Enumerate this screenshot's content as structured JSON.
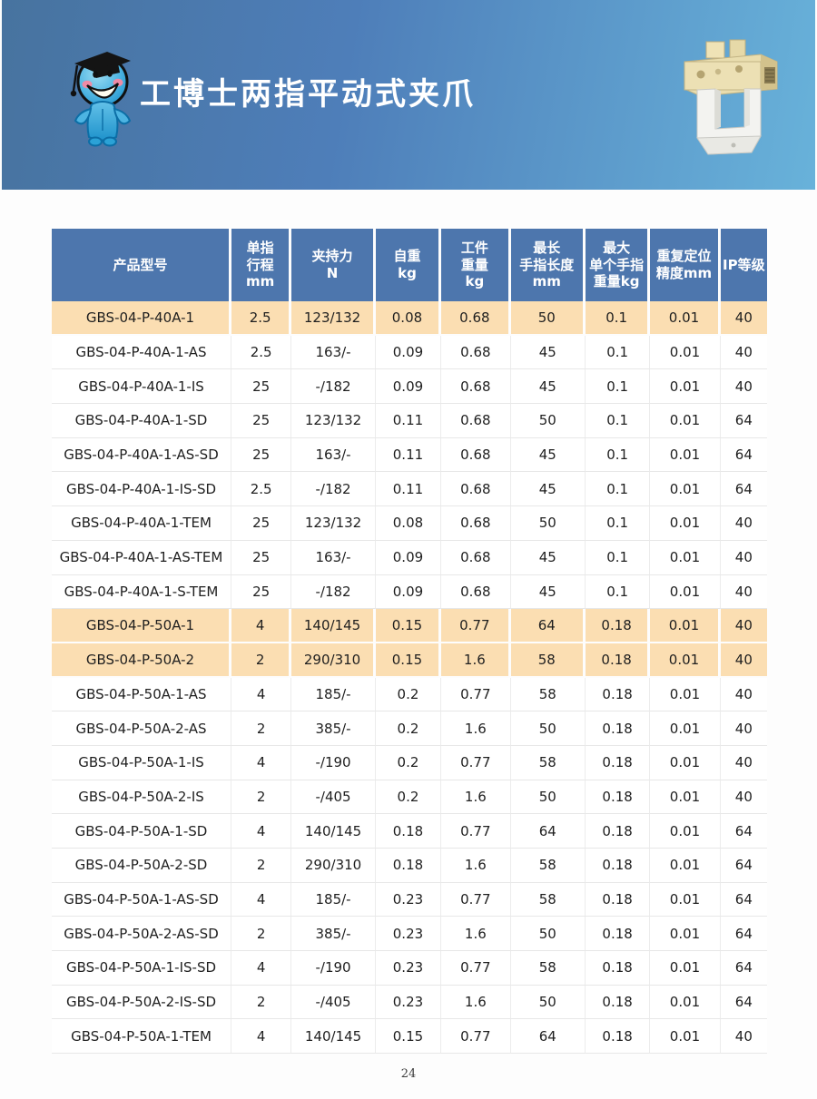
{
  "header": {
    "title": "工博士两指平动式夹爪",
    "banner_gradient_left": "#47739f",
    "banner_gradient_right": "#68b2da",
    "mascot_icon": "doctor-mascot-icon",
    "product_image": "two-finger-parallel-gripper"
  },
  "table": {
    "header_bg": "#4d76ad",
    "highlight_bg": "#fbdeb2",
    "columns": [
      "产品型号",
      "单指\n行程\nmm",
      "夹持力\nN",
      "自重\nkg",
      "工件\n重量\nkg",
      "最长\n手指长度\nmm",
      "最大\n单个手指\n重量kg",
      "重复定位\n精度mm",
      "IP等级"
    ],
    "rows": [
      {
        "highlight": true,
        "cells": [
          "GBS-04-P-40A-1",
          "2.5",
          "123/132",
          "0.08",
          "0.68",
          "50",
          "0.1",
          "0.01",
          "40"
        ]
      },
      {
        "highlight": false,
        "cells": [
          "GBS-04-P-40A-1-AS",
          "2.5",
          "163/-",
          "0.09",
          "0.68",
          "45",
          "0.1",
          "0.01",
          "40"
        ]
      },
      {
        "highlight": false,
        "cells": [
          "GBS-04-P-40A-1-IS",
          "25",
          "-/182",
          "0.09",
          "0.68",
          "45",
          "0.1",
          "0.01",
          "40"
        ]
      },
      {
        "highlight": false,
        "cells": [
          "GBS-04-P-40A-1-SD",
          "25",
          "123/132",
          "0.11",
          "0.68",
          "50",
          "0.1",
          "0.01",
          "64"
        ]
      },
      {
        "highlight": false,
        "cells": [
          "GBS-04-P-40A-1-AS-SD",
          "25",
          "163/-",
          "0.11",
          "0.68",
          "45",
          "0.1",
          "0.01",
          "64"
        ]
      },
      {
        "highlight": false,
        "cells": [
          "GBS-04-P-40A-1-IS-SD",
          "2.5",
          "-/182",
          "0.11",
          "0.68",
          "45",
          "0.1",
          "0.01",
          "64"
        ]
      },
      {
        "highlight": false,
        "cells": [
          "GBS-04-P-40A-1-TEM",
          "25",
          "123/132",
          "0.08",
          "0.68",
          "50",
          "0.1",
          "0.01",
          "40"
        ]
      },
      {
        "highlight": false,
        "cells": [
          "GBS-04-P-40A-1-AS-TEM",
          "25",
          "163/-",
          "0.09",
          "0.68",
          "45",
          "0.1",
          "0.01",
          "40"
        ]
      },
      {
        "highlight": false,
        "cells": [
          "GBS-04-P-40A-1-S-TEM",
          "25",
          "-/182",
          "0.09",
          "0.68",
          "45",
          "0.1",
          "0.01",
          "40"
        ]
      },
      {
        "highlight": true,
        "cells": [
          "GBS-04-P-50A-1",
          "4",
          "140/145",
          "0.15",
          "0.77",
          "64",
          "0.18",
          "0.01",
          "40"
        ]
      },
      {
        "highlight": true,
        "cells": [
          "GBS-04-P-50A-2",
          "2",
          "290/310",
          "0.15",
          "1.6",
          "58",
          "0.18",
          "0.01",
          "40"
        ]
      },
      {
        "highlight": false,
        "cells": [
          "GBS-04-P-50A-1-AS",
          "4",
          "185/-",
          "0.2",
          "0.77",
          "58",
          "0.18",
          "0.01",
          "40"
        ]
      },
      {
        "highlight": false,
        "cells": [
          "GBS-04-P-50A-2-AS",
          "2",
          "385/-",
          "0.2",
          "1.6",
          "50",
          "0.18",
          "0.01",
          "40"
        ]
      },
      {
        "highlight": false,
        "cells": [
          "GBS-04-P-50A-1-IS",
          "4",
          "-/190",
          "0.2",
          "0.77",
          "58",
          "0.18",
          "0.01",
          "40"
        ]
      },
      {
        "highlight": false,
        "cells": [
          "GBS-04-P-50A-2-IS",
          "2",
          "-/405",
          "0.2",
          "1.6",
          "50",
          "0.18",
          "0.01",
          "40"
        ]
      },
      {
        "highlight": false,
        "cells": [
          "GBS-04-P-50A-1-SD",
          "4",
          "140/145",
          "0.18",
          "0.77",
          "64",
          "0.18",
          "0.01",
          "64"
        ]
      },
      {
        "highlight": false,
        "cells": [
          "GBS-04-P-50A-2-SD",
          "2",
          "290/310",
          "0.18",
          "1.6",
          "58",
          "0.18",
          "0.01",
          "64"
        ]
      },
      {
        "highlight": false,
        "cells": [
          "GBS-04-P-50A-1-AS-SD",
          "4",
          "185/-",
          "0.23",
          "0.77",
          "58",
          "0.18",
          "0.01",
          "64"
        ]
      },
      {
        "highlight": false,
        "cells": [
          "GBS-04-P-50A-2-AS-SD",
          "2",
          "385/-",
          "0.23",
          "1.6",
          "50",
          "0.18",
          "0.01",
          "64"
        ]
      },
      {
        "highlight": false,
        "cells": [
          "GBS-04-P-50A-1-IS-SD",
          "4",
          "-/190",
          "0.23",
          "0.77",
          "58",
          "0.18",
          "0.01",
          "64"
        ]
      },
      {
        "highlight": false,
        "cells": [
          "GBS-04-P-50A-2-IS-SD",
          "2",
          "-/405",
          "0.23",
          "1.6",
          "50",
          "0.18",
          "0.01",
          "64"
        ]
      },
      {
        "highlight": false,
        "cells": [
          "GBS-04-P-50A-1-TEM",
          "4",
          "140/145",
          "0.15",
          "0.77",
          "64",
          "0.18",
          "0.01",
          "40"
        ]
      }
    ]
  },
  "footer": {
    "page_number": "24"
  }
}
